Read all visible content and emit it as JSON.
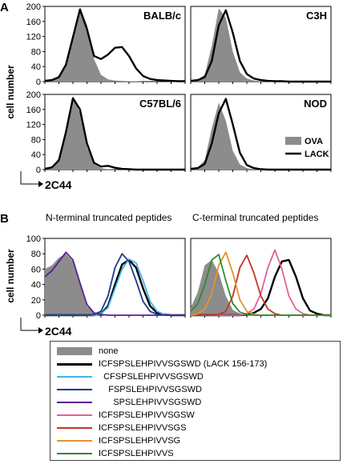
{
  "figure": {
    "panel_a_letter": "A",
    "panel_b_letter": "B",
    "ylabel_a": "cell number",
    "ylabel_b": "cell number",
    "xlabel_a": "2C44",
    "xlabel_b": "2C44",
    "title_b_left": "N-terminal truncated peptides",
    "title_b_right": "C-terminal truncated peptides"
  },
  "colors": {
    "fill": "#8c8c8c",
    "black": "#000000",
    "lightblue": "#41b6e6",
    "navy": "#1c3a8c",
    "purple": "#5a1f96",
    "pink": "#e0619b",
    "red": "#c4342c",
    "orange": "#e8912d",
    "green": "#2e8b2e"
  },
  "chart_data": [
    {
      "type": "area",
      "title": "BALB/c",
      "ylabel": "cell number",
      "ylim": [
        0,
        200
      ],
      "yticks": [
        "0",
        "40",
        "80",
        "120",
        "160",
        "200"
      ],
      "x": [
        0,
        0.05,
        0.1,
        0.15,
        0.2,
        0.25,
        0.3,
        0.35,
        0.4,
        0.45,
        0.5,
        0.55,
        0.6,
        0.65,
        0.7,
        0.75,
        0.8,
        0.85,
        0.9,
        0.95,
        1.0
      ],
      "series": [
        {
          "name": "OVA",
          "values": [
            3,
            6,
            14,
            48,
            120,
            198,
            150,
            60,
            18,
            6,
            3,
            2,
            1,
            1,
            0,
            0,
            0,
            0,
            0,
            0,
            0
          ]
        },
        {
          "name": "LACK",
          "values": [
            2,
            4,
            12,
            45,
            118,
            192,
            140,
            68,
            60,
            72,
            90,
            92,
            68,
            35,
            15,
            7,
            4,
            3,
            2,
            1,
            1
          ]
        }
      ]
    },
    {
      "type": "area",
      "title": "C3H",
      "ylim": [
        0,
        200
      ],
      "yticks": [],
      "x": [
        0,
        0.05,
        0.1,
        0.15,
        0.2,
        0.25,
        0.3,
        0.35,
        0.4,
        0.45,
        0.5,
        0.55,
        0.6,
        0.65,
        0.7,
        0.75,
        0.8,
        0.85,
        0.9,
        0.95,
        1.0
      ],
      "series": [
        {
          "name": "OVA",
          "values": [
            2,
            5,
            18,
            95,
            195,
            170,
            80,
            25,
            8,
            3,
            1,
            1,
            0,
            0,
            0,
            0,
            0,
            0,
            0,
            0,
            0
          ]
        },
        {
          "name": "LACK",
          "values": [
            2,
            4,
            12,
            55,
            150,
            190,
            130,
            55,
            20,
            8,
            4,
            2,
            1,
            1,
            0,
            0,
            0,
            0,
            0,
            0,
            0
          ]
        }
      ]
    },
    {
      "type": "area",
      "title": "C57BL/6",
      "ylabel": "cell number",
      "ylim": [
        0,
        200
      ],
      "yticks": [
        "0",
        "40",
        "80",
        "120",
        "160",
        "200"
      ],
      "x": [
        0,
        0.05,
        0.1,
        0.15,
        0.2,
        0.25,
        0.3,
        0.35,
        0.4,
        0.45,
        0.5,
        0.55,
        0.6,
        0.65,
        0.7,
        0.75,
        0.8,
        0.85,
        0.9,
        0.95,
        1.0
      ],
      "series": [
        {
          "name": "OVA",
          "values": [
            3,
            8,
            30,
            110,
            195,
            150,
            60,
            15,
            4,
            1,
            0,
            0,
            0,
            0,
            0,
            0,
            0,
            0,
            0,
            0,
            0
          ]
        },
        {
          "name": "LACK",
          "values": [
            2,
            6,
            25,
            100,
            190,
            160,
            70,
            18,
            8,
            10,
            5,
            2,
            1,
            0,
            0,
            0,
            0,
            0,
            0,
            0,
            0
          ]
        }
      ]
    },
    {
      "type": "area",
      "title": "NOD",
      "ylim": [
        0,
        200
      ],
      "yticks": [],
      "x": [
        0,
        0.05,
        0.1,
        0.15,
        0.2,
        0.25,
        0.3,
        0.35,
        0.4,
        0.45,
        0.5,
        0.55,
        0.6,
        0.65,
        0.7,
        0.75,
        0.8,
        0.85,
        0.9,
        0.95,
        1.0
      ],
      "series": [
        {
          "name": "OVA",
          "values": [
            2,
            6,
            25,
            110,
            178,
            130,
            50,
            14,
            4,
            1,
            0,
            0,
            0,
            0,
            0,
            0,
            0,
            0,
            0,
            0,
            0
          ]
        },
        {
          "name": "LACK",
          "values": [
            2,
            4,
            15,
            70,
            150,
            188,
            120,
            45,
            12,
            4,
            1,
            0,
            0,
            0,
            0,
            0,
            0,
            0,
            0,
            0,
            0
          ]
        }
      ],
      "legend": [
        "OVA",
        "LACK"
      ]
    },
    {
      "type": "area",
      "title": "N-terminal truncated peptides",
      "ylabel": "cell number",
      "ylim": [
        0,
        100
      ],
      "yticks": [
        "0",
        "20",
        "40",
        "60",
        "80",
        "100"
      ],
      "x": [
        0,
        0.05,
        0.1,
        0.15,
        0.2,
        0.25,
        0.3,
        0.35,
        0.4,
        0.45,
        0.5,
        0.55,
        0.6,
        0.65,
        0.7,
        0.75,
        0.8,
        0.85,
        0.9,
        0.95,
        1.0
      ],
      "series": [
        {
          "name": "none",
          "values": [
            60,
            65,
            75,
            80,
            70,
            40,
            12,
            3,
            1,
            0,
            0,
            0,
            0,
            0,
            0,
            0,
            0,
            0,
            0,
            0,
            0
          ]
        },
        {
          "name": "ICFSPSLEHPIVVSGSWD (LACK 156-173)",
          "values": [
            0,
            0,
            0,
            0,
            0,
            0,
            0,
            0,
            2,
            12,
            40,
            66,
            72,
            62,
            35,
            12,
            3,
            1,
            0,
            0,
            0
          ]
        },
        {
          "name": "CFSPSLEHPIVVSGSWD",
          "values": [
            0,
            0,
            0,
            0,
            0,
            0,
            0,
            0,
            2,
            10,
            35,
            60,
            73,
            68,
            45,
            18,
            5,
            1,
            0,
            0,
            0
          ]
        },
        {
          "name": "FSPSLEHPIVVSGSWD",
          "values": [
            0,
            0,
            0,
            0,
            0,
            0,
            0,
            1,
            5,
            25,
            62,
            80,
            70,
            45,
            18,
            5,
            1,
            0,
            0,
            0,
            0
          ]
        },
        {
          "name": "SPSLEHPIVVSGSWD",
          "values": [
            50,
            58,
            70,
            82,
            72,
            42,
            14,
            3,
            1,
            0,
            0,
            0,
            0,
            0,
            0,
            0,
            0,
            0,
            0,
            0,
            0
          ]
        }
      ]
    },
    {
      "type": "area",
      "title": "C-terminal truncated peptides",
      "ylim": [
        0,
        100
      ],
      "yticks": [],
      "x": [
        0,
        0.05,
        0.1,
        0.15,
        0.2,
        0.25,
        0.3,
        0.35,
        0.4,
        0.45,
        0.5,
        0.55,
        0.6,
        0.65,
        0.7,
        0.75,
        0.8,
        0.85,
        0.9,
        0.95,
        1.0
      ],
      "series": [
        {
          "name": "none",
          "values": [
            10,
            30,
            65,
            72,
            55,
            25,
            7,
            2,
            0,
            0,
            0,
            0,
            0,
            0,
            0,
            0,
            0,
            0,
            0,
            0,
            0
          ]
        },
        {
          "name": "ICFSPSLEHPIVVSGSWD (LACK 156-173)",
          "values": [
            0,
            0,
            0,
            0,
            0,
            0,
            0,
            0,
            1,
            3,
            8,
            22,
            50,
            70,
            72,
            50,
            22,
            6,
            2,
            0,
            0
          ]
        },
        {
          "name": "ICFSPSLEHPIVVSGSW",
          "values": [
            0,
            0,
            0,
            0,
            0,
            0,
            0,
            0,
            2,
            8,
            28,
            62,
            85,
            60,
            25,
            8,
            2,
            0,
            0,
            0,
            0
          ]
        },
        {
          "name": "ICFSPSLEHPIVVSGS",
          "values": [
            0,
            0,
            0,
            0,
            1,
            5,
            25,
            62,
            78,
            55,
            25,
            8,
            2,
            0,
            0,
            0,
            0,
            0,
            0,
            0,
            0
          ]
        },
        {
          "name": "ICFSPSLEHPIVVSG",
          "values": [
            0,
            2,
            8,
            28,
            65,
            82,
            55,
            20,
            5,
            1,
            0,
            0,
            0,
            0,
            0,
            0,
            0,
            0,
            0,
            0,
            0
          ]
        },
        {
          "name": "ICFSPSLEHPIVVS",
          "values": [
            5,
            15,
            40,
            72,
            79,
            45,
            15,
            4,
            1,
            0,
            0,
            0,
            0,
            0,
            0,
            0,
            0,
            0,
            0,
            0,
            0
          ]
        }
      ]
    }
  ],
  "legend": {
    "items": [
      {
        "label": "none",
        "color": "#8c8c8c",
        "kind": "fill"
      },
      {
        "label": "ICFSPSLEHPIVVSGSWD (LACK 156-173)",
        "color": "#000000",
        "kind": "line"
      },
      {
        "label": "  CFSPSLEHPIVVSGSWD",
        "color": "#41b6e6",
        "kind": "line"
      },
      {
        "label": "    FSPSLEHPIVVSGSWD",
        "color": "#1c3a8c",
        "kind": "line"
      },
      {
        "label": "      SPSLEHPIVVSGSWD",
        "color": "#5a1f96",
        "kind": "line"
      },
      {
        "label": "ICFSPSLEHPIVVSGSW",
        "color": "#e0619b",
        "kind": "line"
      },
      {
        "label": "ICFSPSLEHPIVVSGS",
        "color": "#c4342c",
        "kind": "line"
      },
      {
        "label": "ICFSPSLEHPIVVSG",
        "color": "#e8912d",
        "kind": "line"
      },
      {
        "label": "ICFSPSLEHPIVVS",
        "color": "#2e8b2e",
        "kind": "line"
      }
    ]
  }
}
